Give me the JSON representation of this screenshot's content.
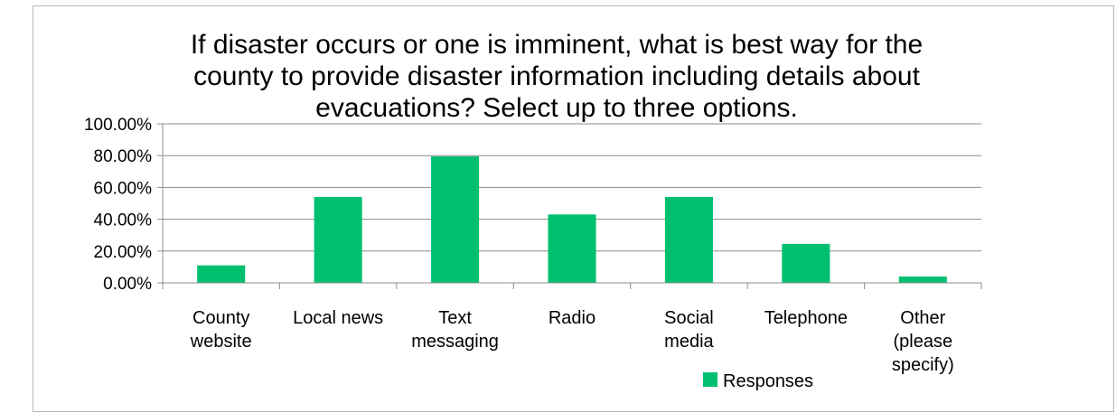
{
  "chart_data": {
    "type": "bar",
    "title_lines": [
      "If disaster occurs or one is imminent, what is best way for the",
      "county to provide disaster information including details about",
      "evacuations? Select up to three options."
    ],
    "categories": [
      [
        "County",
        "website"
      ],
      [
        "Local news"
      ],
      [
        "Text",
        "messaging"
      ],
      [
        "Radio"
      ],
      [
        "Social",
        "media"
      ],
      [
        "Telephone"
      ],
      [
        "Other",
        "(please",
        "specify)"
      ]
    ],
    "series": [
      {
        "name": "Responses",
        "values": [
          11.0,
          54.0,
          79.5,
          43.0,
          54.0,
          24.5,
          4.0
        ],
        "color": "#00c06f"
      }
    ],
    "y_ticks": [
      "0.00%",
      "20.00%",
      "40.00%",
      "60.00%",
      "80.00%",
      "100.00%"
    ],
    "ylim": [
      0,
      100
    ],
    "grid": true,
    "legend_position": "bottom"
  }
}
